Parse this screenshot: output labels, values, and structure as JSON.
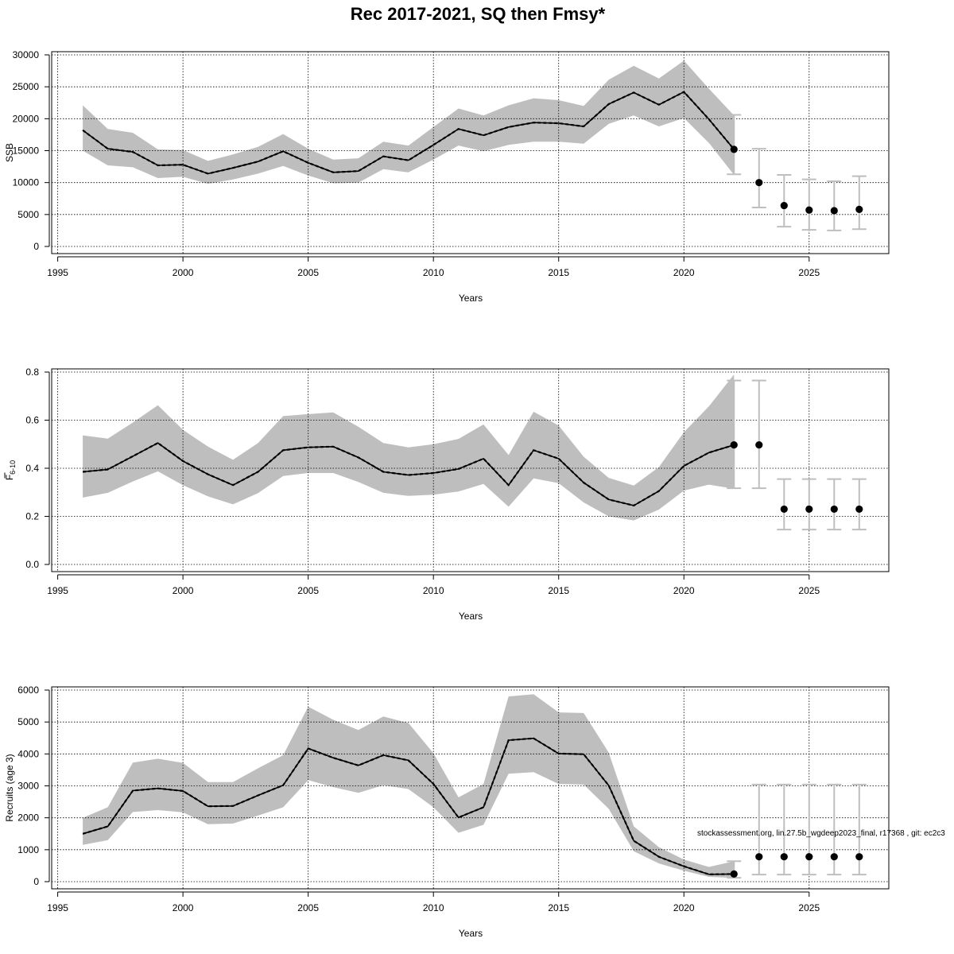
{
  "chart_data": {
    "title": "Rec 2017-2021, SQ then Fmsy*",
    "footnote": "stockassessment.org, lin.27.5b_wgdeep2023_final, r17368 , git: ec2c3",
    "colors": {
      "band": "#bebebe",
      "line": "#000000",
      "errorbar": "#bebebe",
      "point": "#000000",
      "grid": "#000000"
    },
    "panels": [
      {
        "type": "line",
        "name": "ssb",
        "ylabel": "SSB",
        "xlabel": "Years",
        "xlim": [
          1995,
          2028
        ],
        "ylim": [
          0,
          30000
        ],
        "xticks": [
          1995,
          2000,
          2005,
          2010,
          2015,
          2020,
          2025
        ],
        "yticks": [
          0,
          5000,
          10000,
          15000,
          20000,
          25000,
          30000
        ],
        "estimate": {
          "years": [
            1996,
            1997,
            1998,
            1999,
            2000,
            2001,
            2002,
            2003,
            2004,
            2005,
            2006,
            2007,
            2008,
            2009,
            2010,
            2011,
            2012,
            2013,
            2014,
            2015,
            2016,
            2017,
            2018,
            2019,
            2020,
            2021,
            2022
          ],
          "value": [
            18200,
            15300,
            14800,
            12700,
            12800,
            11400,
            12300,
            13300,
            14900,
            13100,
            11600,
            11800,
            14100,
            13500,
            15900,
            18400,
            17400,
            18700,
            19400,
            19300,
            18800,
            22300,
            24100,
            22200,
            24200,
            19900,
            15200
          ],
          "lower": [
            15000,
            12700,
            12400,
            10700,
            10900,
            9800,
            10500,
            11400,
            12600,
            11100,
            9900,
            10000,
            12100,
            11600,
            13600,
            15800,
            14900,
            15900,
            16400,
            16400,
            16100,
            19200,
            20500,
            18800,
            20100,
            16200,
            11200
          ],
          "upper": [
            22100,
            18400,
            17800,
            15200,
            15100,
            13400,
            14400,
            15600,
            17600,
            15300,
            13600,
            13800,
            16400,
            15800,
            18700,
            21600,
            20500,
            22100,
            23200,
            22900,
            22000,
            26100,
            28300,
            26300,
            29100,
            24700,
            20500
          ]
        },
        "forecast": {
          "years": [
            2022,
            2023,
            2024,
            2025,
            2026,
            2027
          ],
          "value": [
            15200,
            10000,
            6400,
            5700,
            5600,
            5800
          ],
          "lower": [
            11300,
            6100,
            3100,
            2600,
            2500,
            2700
          ],
          "upper": [
            20600,
            15300,
            11200,
            10500,
            10200,
            11000
          ]
        }
      },
      {
        "type": "line",
        "name": "fbar",
        "ylabel": "F",
        "ylabel_sub": "6-10",
        "xlabel": "Years",
        "xlim": [
          1995,
          2028
        ],
        "ylim": [
          0,
          0.8
        ],
        "xticks": [
          1995,
          2000,
          2005,
          2010,
          2015,
          2020,
          2025
        ],
        "yticks": [
          0.0,
          0.2,
          0.4,
          0.6,
          0.8
        ],
        "yticklabels": [
          "0.0",
          "0.2",
          "0.4",
          "0.6",
          "0.8"
        ],
        "estimate": {
          "years": [
            1996,
            1997,
            1998,
            1999,
            2000,
            2001,
            2002,
            2003,
            2004,
            2005,
            2006,
            2007,
            2008,
            2009,
            2010,
            2011,
            2012,
            2013,
            2014,
            2015,
            2016,
            2017,
            2018,
            2019,
            2020,
            2021,
            2022
          ],
          "value": [
            0.385,
            0.395,
            0.45,
            0.505,
            0.43,
            0.375,
            0.33,
            0.385,
            0.475,
            0.487,
            0.49,
            0.445,
            0.385,
            0.372,
            0.38,
            0.397,
            0.44,
            0.33,
            0.475,
            0.44,
            0.34,
            0.27,
            0.245,
            0.305,
            0.41,
            0.465,
            0.497
          ],
          "lower": [
            0.278,
            0.298,
            0.345,
            0.387,
            0.33,
            0.283,
            0.25,
            0.297,
            0.368,
            0.38,
            0.38,
            0.343,
            0.298,
            0.285,
            0.29,
            0.303,
            0.335,
            0.24,
            0.358,
            0.338,
            0.258,
            0.2,
            0.183,
            0.228,
            0.307,
            0.332,
            0.315
          ],
          "upper": [
            0.537,
            0.523,
            0.59,
            0.662,
            0.56,
            0.49,
            0.435,
            0.505,
            0.617,
            0.625,
            0.632,
            0.573,
            0.505,
            0.487,
            0.5,
            0.522,
            0.582,
            0.455,
            0.635,
            0.578,
            0.448,
            0.36,
            0.328,
            0.405,
            0.55,
            0.658,
            0.79
          ]
        },
        "forecast": {
          "years": [
            2022,
            2023,
            2024,
            2025,
            2026,
            2027
          ],
          "value": [
            0.497,
            0.497,
            0.23,
            0.23,
            0.23,
            0.23
          ],
          "lower": [
            0.317,
            0.317,
            0.145,
            0.145,
            0.145,
            0.145
          ],
          "upper": [
            0.765,
            0.765,
            0.355,
            0.355,
            0.355,
            0.355
          ]
        }
      },
      {
        "type": "line",
        "name": "recruits",
        "ylabel": "Recruits (age 3)",
        "xlabel": "Years",
        "xlim": [
          1995,
          2028
        ],
        "ylim": [
          0,
          6000
        ],
        "xticks": [
          1995,
          2000,
          2005,
          2010,
          2015,
          2020,
          2025
        ],
        "yticks": [
          0,
          1000,
          2000,
          3000,
          4000,
          5000,
          6000
        ],
        "estimate": {
          "years": [
            1996,
            1997,
            1998,
            1999,
            2000,
            2001,
            2002,
            2003,
            2004,
            2005,
            2006,
            2007,
            2008,
            2009,
            2010,
            2011,
            2012,
            2013,
            2014,
            2015,
            2016,
            2017,
            2018,
            2019,
            2020,
            2021,
            2022
          ],
          "value": [
            1500,
            1730,
            2850,
            2920,
            2840,
            2360,
            2370,
            2700,
            3020,
            4170,
            3880,
            3640,
            3960,
            3800,
            3060,
            2010,
            2330,
            4430,
            4490,
            4010,
            3990,
            3010,
            1280,
            780,
            480,
            230,
            240
          ],
          "lower": [
            1150,
            1300,
            2180,
            2240,
            2170,
            1800,
            1820,
            2070,
            2330,
            3180,
            2960,
            2780,
            3020,
            2900,
            2330,
            1530,
            1780,
            3380,
            3430,
            3060,
            3040,
            2280,
            950,
            570,
            340,
            150,
            120
          ],
          "upper": [
            2000,
            2330,
            3730,
            3850,
            3720,
            3120,
            3120,
            3550,
            3960,
            5480,
            5070,
            4750,
            5170,
            4970,
            4020,
            2640,
            3060,
            5800,
            5870,
            5300,
            5280,
            4040,
            1730,
            1080,
            690,
            460,
            640
          ]
        },
        "forecast": {
          "years": [
            2022,
            2023,
            2024,
            2025,
            2026,
            2027
          ],
          "value": [
            240,
            780,
            780,
            780,
            780,
            780
          ],
          "lower": [
            120,
            220,
            220,
            220,
            220,
            220
          ],
          "upper": [
            640,
            3040,
            3040,
            3040,
            3040,
            3040
          ]
        }
      }
    ]
  }
}
